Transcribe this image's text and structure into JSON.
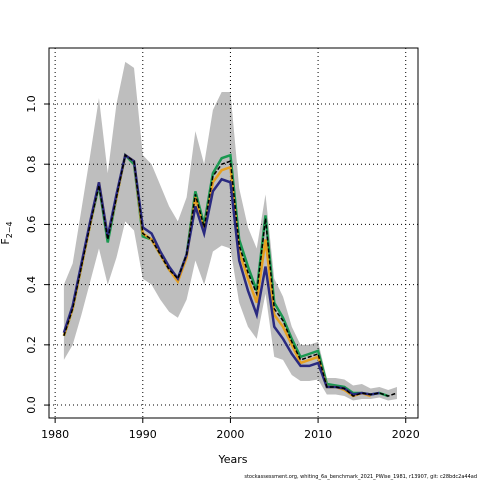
{
  "chart_data": {
    "type": "line",
    "xlabel": "Years",
    "ylabel": "F",
    "ylabel_sub": "2−4",
    "footer": "stockassessment.org, whiting_6a_benchmark_2021_PWise_1981, r13907, git: c28bdc2a44ad",
    "x": [
      1981,
      1982,
      1983,
      1984,
      1985,
      1986,
      1987,
      1988,
      1989,
      1990,
      1991,
      1992,
      1993,
      1994,
      1995,
      1996,
      1997,
      1998,
      1999,
      2000,
      2001,
      2002,
      2003,
      2004,
      2005,
      2006,
      2007,
      2008,
      2009,
      2010,
      2011,
      2012,
      2013,
      2014,
      2015,
      2016,
      2017,
      2018,
      2019
    ],
    "band_color": "#bebebe",
    "band_upper": [
      0.4,
      0.47,
      0.65,
      0.83,
      1.02,
      0.77,
      1.0,
      1.14,
      1.12,
      0.83,
      0.8,
      0.73,
      0.66,
      0.61,
      0.69,
      0.91,
      0.8,
      0.98,
      1.04,
      1.04,
      0.72,
      0.59,
      0.52,
      0.7,
      0.42,
      0.36,
      0.26,
      0.2,
      0.2,
      0.21,
      0.09,
      0.09,
      0.085,
      0.065,
      0.07,
      0.055,
      0.06,
      0.05,
      0.06
    ],
    "band_lower": [
      0.15,
      0.2,
      0.3,
      0.41,
      0.52,
      0.4,
      0.49,
      0.61,
      0.58,
      0.42,
      0.4,
      0.35,
      0.31,
      0.29,
      0.35,
      0.48,
      0.4,
      0.51,
      0.53,
      0.52,
      0.34,
      0.26,
      0.22,
      0.37,
      0.16,
      0.15,
      0.1,
      0.08,
      0.08,
      0.085,
      0.035,
      0.035,
      0.03,
      0.015,
      0.02,
      0.02,
      0.025,
      0.015,
      0.02
    ],
    "series": [
      {
        "color": "#1a9850",
        "values": [
          0.23,
          0.32,
          0.46,
          0.6,
          0.73,
          0.54,
          0.69,
          0.83,
          0.8,
          0.56,
          0.55,
          0.5,
          0.45,
          0.42,
          0.5,
          0.71,
          0.6,
          0.77,
          0.82,
          0.83,
          0.55,
          0.46,
          0.38,
          0.63,
          0.34,
          0.29,
          0.22,
          0.16,
          0.17,
          0.18,
          0.07,
          0.065,
          0.06,
          0.04,
          0.04,
          0.035,
          0.04,
          0.03,
          null
        ]
      },
      {
        "color": "#e6a020",
        "values": [
          0.23,
          0.32,
          0.46,
          0.6,
          0.74,
          0.56,
          0.69,
          0.83,
          0.81,
          0.57,
          0.55,
          0.5,
          0.45,
          0.41,
          0.49,
          0.69,
          0.58,
          0.74,
          0.78,
          0.79,
          0.51,
          0.42,
          0.34,
          0.55,
          0.3,
          0.26,
          0.2,
          0.14,
          0.15,
          0.16,
          0.06,
          0.06,
          0.05,
          0.03,
          0.04,
          0.03,
          null,
          null,
          null
        ]
      },
      {
        "color": "#2a2a80",
        "values": [
          0.24,
          0.33,
          0.47,
          0.61,
          0.74,
          0.56,
          0.7,
          0.83,
          0.81,
          0.59,
          0.57,
          0.51,
          0.46,
          0.42,
          0.5,
          0.66,
          0.57,
          0.71,
          0.75,
          0.74,
          0.48,
          0.38,
          0.3,
          0.46,
          0.26,
          0.22,
          0.17,
          0.13,
          0.13,
          0.14,
          0.06,
          0.06,
          0.055,
          0.035,
          0.04,
          0.035,
          0.04,
          null,
          null
        ]
      },
      {
        "color": "#000000",
        "values": [
          0.23,
          0.32,
          0.46,
          0.6,
          0.73,
          0.55,
          0.69,
          0.83,
          0.81,
          0.57,
          0.55,
          0.5,
          0.45,
          0.42,
          0.5,
          0.7,
          0.59,
          0.76,
          0.8,
          0.81,
          0.53,
          0.44,
          0.37,
          0.62,
          0.32,
          0.28,
          0.21,
          0.15,
          0.16,
          0.17,
          0.06,
          0.06,
          0.055,
          0.03,
          0.04,
          0.035,
          0.04,
          0.03,
          0.04
        ]
      }
    ],
    "xlim": [
      1979.3,
      2021.4
    ],
    "ylim": [
      -0.043,
      1.186
    ],
    "xticks": [
      1980,
      1990,
      2000,
      2010,
      2020
    ],
    "yticks": [
      {
        "value": 0,
        "label": "0.0"
      },
      0.2,
      0.4,
      0.6,
      0.8,
      {
        "value": 1,
        "label": "1.0"
      }
    ],
    "grid": true
  }
}
